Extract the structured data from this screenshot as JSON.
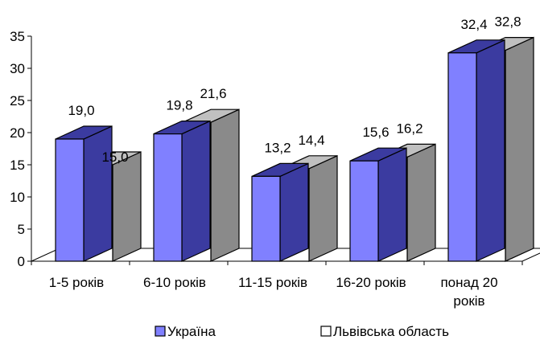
{
  "chart_data": {
    "type": "bar",
    "categories": [
      "1-5 років",
      "6-10 років",
      "11-15 років",
      "16-20 років",
      "понад 20 років"
    ],
    "category_lines": [
      [
        "1-5 років"
      ],
      [
        "6-10 років"
      ],
      [
        "11-15 років"
      ],
      [
        "16-20 років"
      ],
      [
        "понад 20",
        "років"
      ]
    ],
    "series": [
      {
        "name": "Україна",
        "values": [
          19.0,
          19.8,
          13.2,
          15.6,
          32.4
        ],
        "labels": [
          "19,0",
          "19,8",
          "13,2",
          "15,6",
          "32,4"
        ],
        "color": "#8080ff"
      },
      {
        "name": "Львівська область",
        "values": [
          15.0,
          21.6,
          14.4,
          16.2,
          32.8
        ],
        "labels": [
          "15,0",
          "21,6",
          "14,4",
          "16,2",
          "32,8"
        ],
        "color": "#ffffff"
      }
    ],
    "yticks": [
      "0",
      "5",
      "10",
      "15",
      "20",
      "25",
      "30",
      "35"
    ],
    "ylim": [
      0,
      35
    ],
    "grid": false,
    "three_d": true,
    "legend_position": "bottom",
    "title": "",
    "xlabel": "",
    "ylabel": ""
  }
}
